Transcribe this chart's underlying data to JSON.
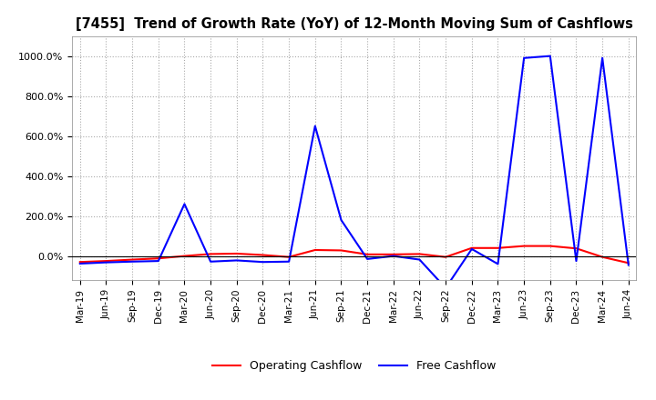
{
  "title": "[7455]  Trend of Growth Rate (YoY) of 12-Month Moving Sum of Cashflows",
  "x_labels": [
    "Mar-19",
    "Jun-19",
    "Sep-19",
    "Dec-19",
    "Mar-20",
    "Jun-20",
    "Sep-20",
    "Dec-20",
    "Mar-21",
    "Jun-21",
    "Sep-21",
    "Dec-21",
    "Mar-22",
    "Jun-22",
    "Sep-22",
    "Dec-22",
    "Mar-23",
    "Jun-23",
    "Sep-23",
    "Dec-23",
    "Mar-24",
    "Jun-24"
  ],
  "operating_cashflow": [
    -0.3,
    -0.25,
    -0.18,
    -0.12,
    0.0,
    0.1,
    0.12,
    0.05,
    -0.05,
    0.3,
    0.28,
    0.08,
    0.08,
    0.1,
    -0.05,
    0.4,
    0.4,
    0.5,
    0.5,
    0.38,
    -0.05,
    -0.35
  ],
  "free_cashflow": [
    -0.38,
    -0.32,
    -0.28,
    -0.25,
    2.6,
    -0.28,
    -0.22,
    -0.3,
    -0.28,
    6.5,
    1.8,
    -0.15,
    0.0,
    -0.18,
    -1.6,
    0.35,
    -0.4,
    9.9,
    10.0,
    -0.25,
    9.9,
    -0.45
  ],
  "operating_color": "#ff0000",
  "free_color": "#0000ff",
  "ylim_min": -1.2,
  "ylim_max": 11.0,
  "ytick_values": [
    0.0,
    2.0,
    4.0,
    6.0,
    8.0,
    10.0
  ],
  "ytick_labels": [
    "0.0%",
    "200.0%",
    "400.0%",
    "600.0%",
    "800.0%",
    "1000.0%"
  ],
  "background_color": "#ffffff",
  "grid_color": "#aaaaaa"
}
